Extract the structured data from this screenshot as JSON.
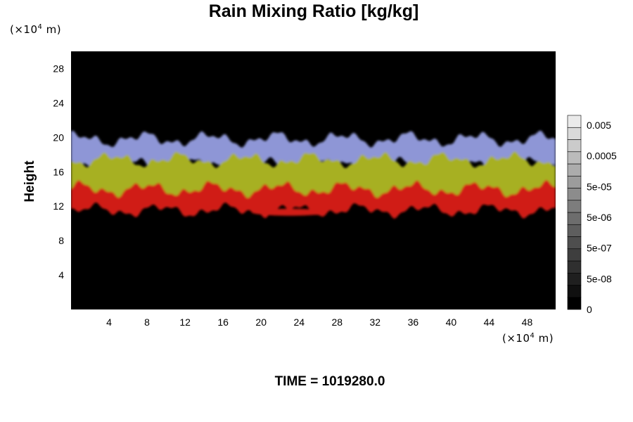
{
  "chart_data": {
    "type": "heatmap",
    "title": "Rain Mixing Ratio [kg/kg]",
    "ylabel": "Height",
    "xlabel": "",
    "x_unit": "(×10⁴ m)",
    "y_unit": "(×10⁴ m)",
    "x_unit_base": "(×10",
    "x_unit_exp": "4",
    "x_unit_tail": " m)",
    "y_unit_base": "(×10",
    "y_unit_exp": "4",
    "y_unit_tail": " m)",
    "xlim": [
      0,
      51
    ],
    "ylim": [
      0,
      30
    ],
    "x_ticks": [
      4,
      8,
      12,
      16,
      20,
      24,
      28,
      32,
      36,
      40,
      44,
      48
    ],
    "y_ticks": [
      4,
      8,
      12,
      16,
      20,
      24,
      28
    ],
    "x_tick_labels": [
      "4",
      "8",
      "12",
      "16",
      "20",
      "24",
      "28",
      "32",
      "36",
      "40",
      "44",
      "48"
    ],
    "y_tick_labels": [
      "4",
      "8",
      "12",
      "16",
      "20",
      "24",
      "28"
    ],
    "background_color": "#000000",
    "layers": [
      {
        "color": "#8e96d6",
        "y_bottom": 16.8,
        "y_top": 19.8
      },
      {
        "color": "#a7b021",
        "y_bottom": 13.5,
        "y_top": 17.4
      },
      {
        "color": "#d01a12",
        "y_bottom": 11.5,
        "y_top": 14.0
      }
    ],
    "patches": [
      {
        "color": "#d01a12",
        "x_start": 19.0,
        "x_end": 27.0,
        "y": 11.3
      }
    ],
    "colorbar": {
      "tick_labels": [
        "0.005",
        "0.0005",
        "5e-05",
        "5e-06",
        "5e-07",
        "5e-08",
        "0"
      ],
      "levels": 16,
      "color_low": "#000000",
      "color_high": "#eaeaea"
    },
    "footer": "TIME = 1019280.0"
  }
}
